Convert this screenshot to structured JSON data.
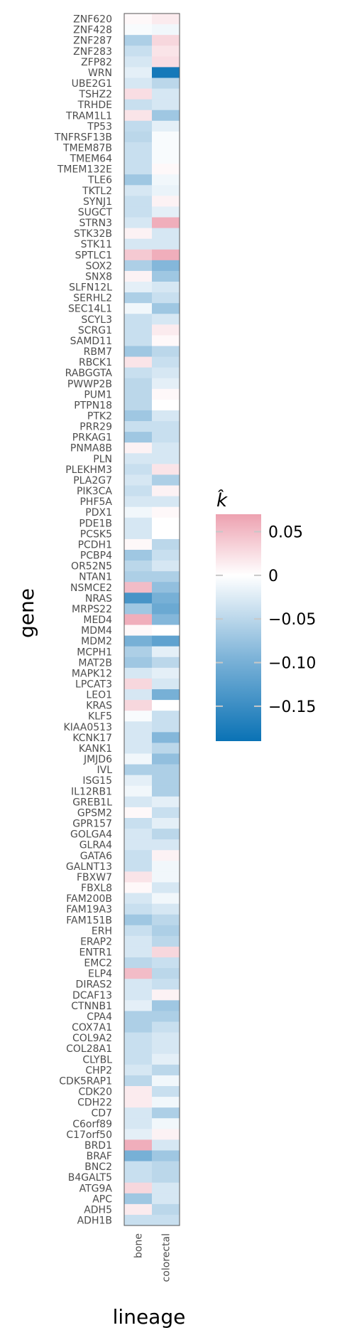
{
  "chart_data": {
    "type": "heatmap",
    "xlabel": "lineage",
    "ylabel": "gene",
    "x_categories": [
      "bone",
      "colorectal"
    ],
    "y_categories": [
      "ZNF620",
      "ZNF428",
      "ZNF287",
      "ZNF283",
      "ZFP82",
      "WRN",
      "UBE2G1",
      "TSHZ2",
      "TRHDE",
      "TRAM1L1",
      "TP53",
      "TNFRSF13B",
      "TMEM87B",
      "TMEM64",
      "TMEM132E",
      "TLE6",
      "TKTL2",
      "SYNJ1",
      "SUGCT",
      "STRN3",
      "STK32B",
      "STK11",
      "SPTLC1",
      "SOX2",
      "SNX8",
      "SLFN12L",
      "SERHL2",
      "SEC14L1",
      "SCYL3",
      "SCRG1",
      "SAMD11",
      "RBM7",
      "RBCK1",
      "RABGGTA",
      "PWWP2B",
      "PUM1",
      "PTPN18",
      "PTK2",
      "PRR29",
      "PRKAG1",
      "PNMA8B",
      "PLN",
      "PLEKHM3",
      "PLA2G7",
      "PIK3CA",
      "PHF5A",
      "PDX1",
      "PDE1B",
      "PCSK5",
      "PCDH1",
      "PCBP4",
      "OR52N5",
      "NTAN1",
      "NSMCE2",
      "NRAS",
      "MRPS22",
      "MED4",
      "MDM4",
      "MDM2",
      "MCPH1",
      "MAT2B",
      "MAPK12",
      "LPCAT3",
      "LEO1",
      "KRAS",
      "KLF5",
      "KIAA0513",
      "KCNK17",
      "KANK1",
      "JMJD6",
      "IVL",
      "ISG15",
      "IL12RB1",
      "GREB1L",
      "GPSM2",
      "GPR157",
      "GOLGA4",
      "GLRA4",
      "GATA6",
      "GALNT13",
      "FBXW7",
      "FBXL8",
      "FAM200B",
      "FAM19A3",
      "FAM151B",
      "ERH",
      "ERAP2",
      "ENTR1",
      "EMC2",
      "ELP4",
      "DIRAS2",
      "DCAF13",
      "CTNNB1",
      "CPA4",
      "COX7A1",
      "COL9A2",
      "COL28A1",
      "CLYBL",
      "CHP2",
      "CDK5RAP1",
      "CDK20",
      "CDH22",
      "CD7",
      "C6orf89",
      "C17orf50",
      "BRD1",
      "BRAF",
      "BNC2",
      "B4GALT5",
      "ATG9A",
      "APC",
      "ADH5",
      "ADH1B"
    ],
    "values": [
      [
        0.005,
        0.015
      ],
      [
        -0.005,
        -0.01
      ],
      [
        -0.06,
        0.03
      ],
      [
        -0.04,
        0.02
      ],
      [
        -0.03,
        0.025
      ],
      [
        -0.02,
        -0.18
      ],
      [
        -0.03,
        -0.05
      ],
      [
        0.025,
        -0.03
      ],
      [
        -0.04,
        -0.03
      ],
      [
        0.02,
        -0.07
      ],
      [
        -0.045,
        -0.02
      ],
      [
        -0.05,
        -0.005
      ],
      [
        -0.04,
        -0.005
      ],
      [
        -0.04,
        -0.005
      ],
      [
        -0.04,
        0.005
      ],
      [
        -0.07,
        -0.01
      ],
      [
        -0.03,
        -0.015
      ],
      [
        -0.04,
        0.01
      ],
      [
        -0.04,
        -0.02
      ],
      [
        -0.03,
        0.06
      ],
      [
        0.01,
        -0.03
      ],
      [
        -0.03,
        -0.03
      ],
      [
        0.04,
        0.06
      ],
      [
        -0.06,
        -0.09
      ],
      [
        0.01,
        -0.07
      ],
      [
        -0.02,
        -0.03
      ],
      [
        -0.06,
        -0.04
      ],
      [
        -0.01,
        -0.07
      ],
      [
        -0.04,
        -0.03
      ],
      [
        -0.04,
        0.015
      ],
      [
        -0.04,
        0.005
      ],
      [
        -0.07,
        -0.05
      ],
      [
        0.02,
        -0.04
      ],
      [
        -0.04,
        -0.03
      ],
      [
        -0.05,
        -0.02
      ],
      [
        -0.05,
        0.005
      ],
      [
        -0.05,
        0.0
      ],
      [
        -0.07,
        -0.03
      ],
      [
        -0.04,
        -0.04
      ],
      [
        -0.07,
        -0.04
      ],
      [
        0.01,
        -0.03
      ],
      [
        -0.03,
        -0.03
      ],
      [
        -0.04,
        0.02
      ],
      [
        -0.03,
        -0.06
      ],
      [
        -0.04,
        0.01
      ],
      [
        -0.03,
        -0.03
      ],
      [
        -0.01,
        0.005
      ],
      [
        -0.03,
        0.0
      ],
      [
        -0.03,
        0.0
      ],
      [
        0.005,
        -0.05
      ],
      [
        -0.07,
        -0.04
      ],
      [
        -0.05,
        -0.03
      ],
      [
        -0.06,
        -0.06
      ],
      [
        0.05,
        -0.08
      ],
      [
        -0.14,
        -0.1
      ],
      [
        -0.07,
        -0.11
      ],
      [
        0.06,
        -0.09
      ],
      [
        0.005,
        0.0
      ],
      [
        -0.1,
        -0.12
      ],
      [
        -0.06,
        -0.02
      ],
      [
        -0.07,
        -0.05
      ],
      [
        -0.03,
        -0.02
      ],
      [
        0.03,
        -0.03
      ],
      [
        -0.03,
        -0.1
      ],
      [
        0.03,
        0.0
      ],
      [
        -0.005,
        -0.04
      ],
      [
        -0.03,
        -0.04
      ],
      [
        -0.03,
        -0.09
      ],
      [
        -0.03,
        -0.05
      ],
      [
        -0.01,
        -0.08
      ],
      [
        -0.06,
        -0.06
      ],
      [
        -0.02,
        -0.06
      ],
      [
        -0.01,
        -0.06
      ],
      [
        -0.03,
        -0.02
      ],
      [
        0.005,
        -0.04
      ],
      [
        -0.04,
        -0.02
      ],
      [
        -0.03,
        -0.05
      ],
      [
        -0.03,
        -0.03
      ],
      [
        -0.04,
        0.01
      ],
      [
        -0.04,
        -0.01
      ],
      [
        0.02,
        -0.01
      ],
      [
        0.005,
        -0.03
      ],
      [
        -0.03,
        -0.01
      ],
      [
        -0.04,
        -0.03
      ],
      [
        -0.07,
        -0.05
      ],
      [
        -0.04,
        -0.06
      ],
      [
        -0.03,
        -0.05
      ],
      [
        -0.03,
        0.03
      ],
      [
        -0.05,
        -0.04
      ],
      [
        0.05,
        -0.05
      ],
      [
        -0.03,
        -0.04
      ],
      [
        -0.03,
        0.01
      ],
      [
        -0.02,
        -0.07
      ],
      [
        -0.06,
        -0.06
      ],
      [
        -0.06,
        -0.04
      ],
      [
        -0.04,
        -0.03
      ],
      [
        -0.04,
        -0.03
      ],
      [
        -0.04,
        -0.02
      ],
      [
        -0.03,
        -0.05
      ],
      [
        -0.05,
        -0.01
      ],
      [
        0.015,
        -0.04
      ],
      [
        0.015,
        -0.01
      ],
      [
        -0.03,
        -0.06
      ],
      [
        -0.03,
        -0.01
      ],
      [
        -0.02,
        0.01
      ],
      [
        0.06,
        -0.03
      ],
      [
        -0.1,
        -0.07
      ],
      [
        -0.04,
        -0.05
      ],
      [
        -0.04,
        -0.05
      ],
      [
        0.03,
        -0.03
      ],
      [
        -0.07,
        -0.03
      ],
      [
        0.015,
        -0.05
      ],
      [
        -0.04,
        -0.04
      ]
    ],
    "legend": {
      "title": "k̂",
      "ticks": [
        "0.05",
        "0",
        "−0.05",
        "−0.10",
        "−0.15"
      ],
      "tick_values": [
        0.05,
        0,
        -0.05,
        -0.1,
        -0.15
      ],
      "min": -0.19,
      "max": 0.07,
      "colors": {
        "min": "#0a72b5",
        "low": "#7db3d8",
        "mid": "#ffffff",
        "high": "#eda1b0"
      }
    },
    "grid": false,
    "legend_position": "right"
  }
}
